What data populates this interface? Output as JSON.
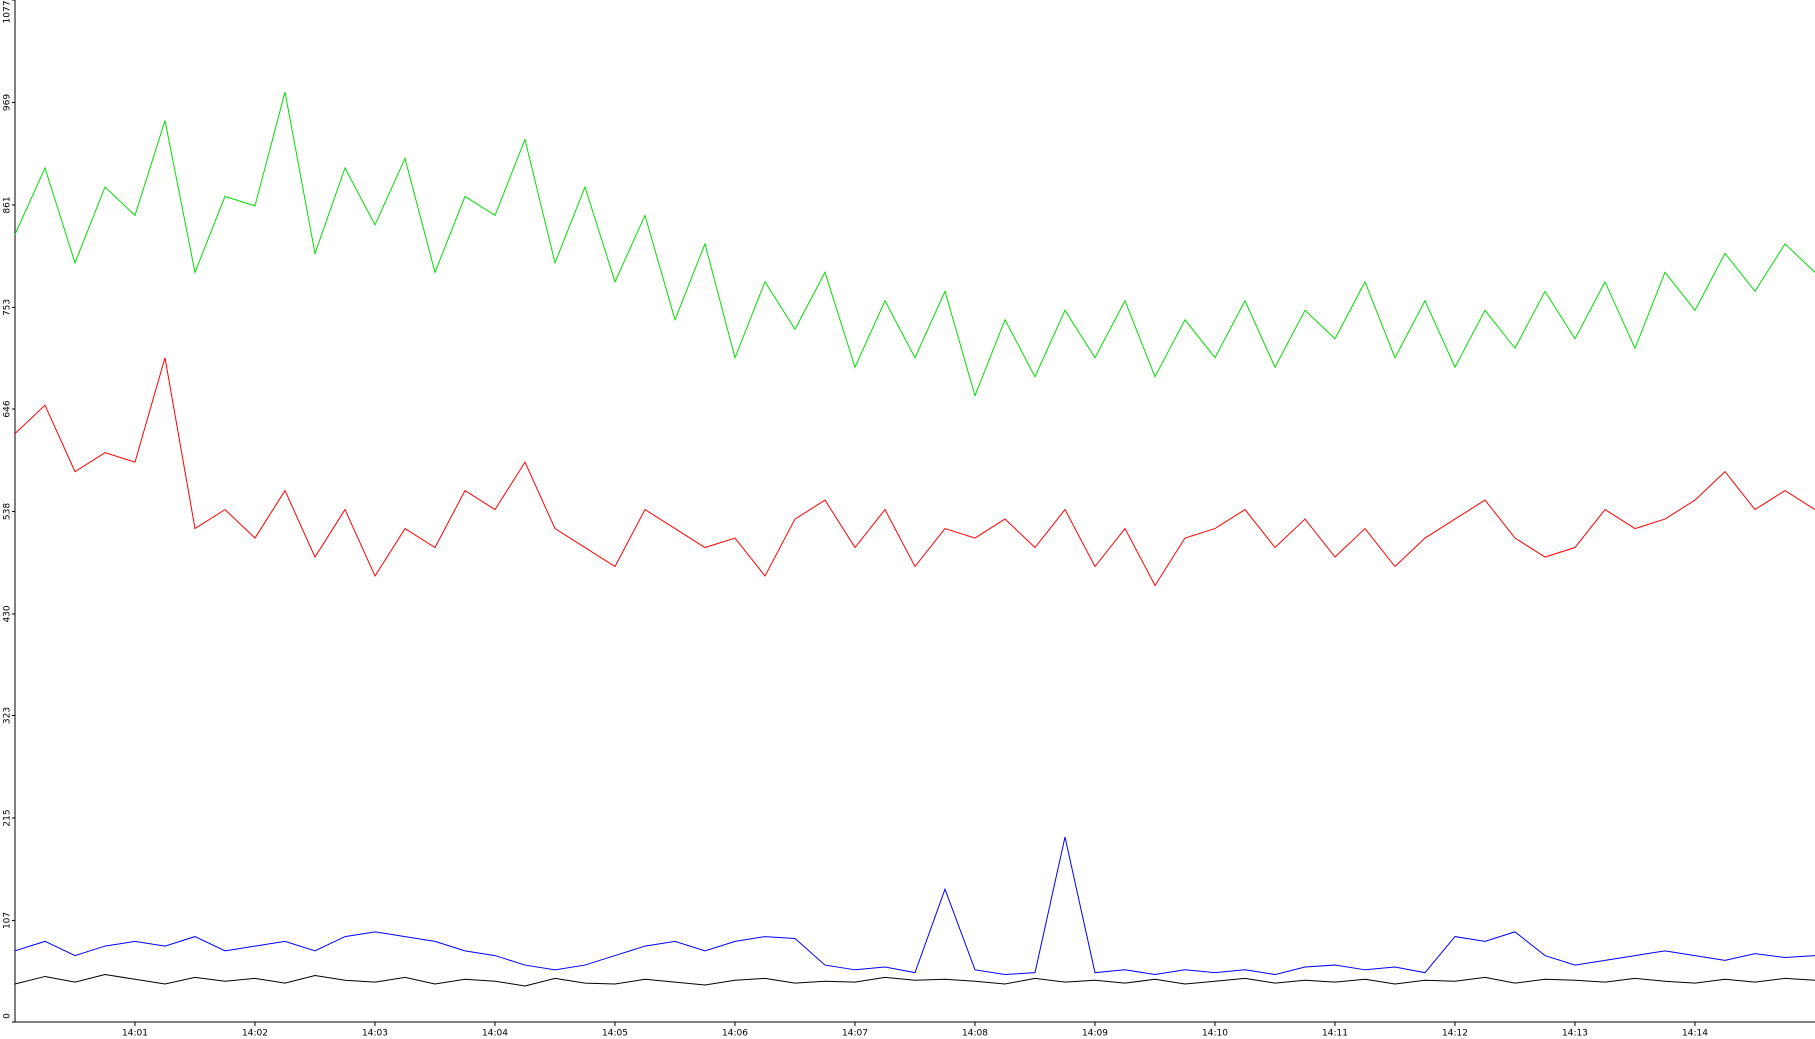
{
  "chart_data": {
    "type": "line",
    "x": [
      0,
      0.25,
      0.5,
      0.75,
      1,
      1.25,
      1.5,
      1.75,
      2,
      2.25,
      2.5,
      2.75,
      3,
      3.25,
      3.5,
      3.75,
      4,
      4.25,
      4.5,
      4.75,
      5,
      5.25,
      5.5,
      5.75,
      6,
      6.25,
      6.5,
      6.75,
      7,
      7.25,
      7.5,
      7.75,
      8,
      8.25,
      8.5,
      8.75,
      9,
      9.25,
      9.5,
      9.75,
      10,
      10.25,
      10.5,
      10.75,
      11,
      11.25,
      11.5,
      11.75,
      12,
      12.25,
      12.5,
      12.75,
      13,
      13.25,
      13.5,
      13.75,
      14,
      14.25,
      14.5,
      14.75,
      15
    ],
    "series": [
      {
        "color": "#00e000",
        "values": [
          830,
          900,
          800,
          880,
          850,
          950,
          790,
          870,
          860,
          980,
          810,
          900,
          840,
          910,
          790,
          870,
          850,
          930,
          800,
          880,
          780,
          850,
          740,
          820,
          700,
          780,
          730,
          790,
          690,
          760,
          700,
          770,
          660,
          740,
          680,
          750,
          700,
          760,
          680,
          740,
          700,
          760,
          690,
          750,
          720,
          780,
          700,
          760,
          690,
          750,
          710,
          770,
          720,
          780,
          710,
          790,
          750,
          810,
          770,
          820,
          790
        ]
      },
      {
        "color": "#ff0000",
        "values": [
          620,
          650,
          580,
          600,
          590,
          700,
          520,
          540,
          510,
          560,
          490,
          540,
          470,
          520,
          500,
          560,
          540,
          590,
          520,
          500,
          480,
          540,
          520,
          500,
          510,
          470,
          530,
          550,
          500,
          540,
          480,
          520,
          510,
          530,
          500,
          540,
          480,
          520,
          460,
          510,
          520,
          540,
          500,
          530,
          490,
          520,
          480,
          510,
          530,
          550,
          510,
          490,
          500,
          540,
          520,
          530,
          550,
          580,
          540,
          560,
          540
        ]
      },
      {
        "color": "#0000ff",
        "values": [
          75,
          85,
          70,
          80,
          85,
          80,
          90,
          75,
          80,
          85,
          75,
          90,
          95,
          90,
          85,
          75,
          70,
          60,
          55,
          60,
          70,
          80,
          85,
          75,
          85,
          90,
          88,
          60,
          55,
          58,
          52,
          140,
          55,
          50,
          52,
          195,
          52,
          55,
          50,
          55,
          52,
          55,
          50,
          58,
          60,
          55,
          58,
          52,
          90,
          85,
          95,
          70,
          60,
          65,
          70,
          75,
          70,
          65,
          72,
          68,
          70
        ]
      },
      {
        "color": "#000000",
        "values": [
          40,
          48,
          42,
          50,
          45,
          40,
          47,
          43,
          46,
          41,
          49,
          44,
          42,
          47,
          40,
          45,
          43,
          38,
          46,
          41,
          40,
          45,
          42,
          39,
          44,
          46,
          41,
          43,
          42,
          47,
          44,
          45,
          43,
          40,
          46,
          42,
          44,
          41,
          45,
          40,
          43,
          46,
          41,
          44,
          42,
          45,
          40,
          44,
          43,
          47,
          41,
          45,
          44,
          42,
          46,
          43,
          41,
          45,
          42,
          46,
          44
        ]
      }
    ],
    "xlim": [
      0,
      15
    ],
    "xticks": [
      {
        "value": 1,
        "label": "14:01"
      },
      {
        "value": 2,
        "label": "14:02"
      },
      {
        "value": 3,
        "label": "14:03"
      },
      {
        "value": 4,
        "label": "14:04"
      },
      {
        "value": 5,
        "label": "14:05"
      },
      {
        "value": 6,
        "label": "14:06"
      },
      {
        "value": 7,
        "label": "14:07"
      },
      {
        "value": 8,
        "label": "14:08"
      },
      {
        "value": 9,
        "label": "14:09"
      },
      {
        "value": 10,
        "label": "14:10"
      },
      {
        "value": 11,
        "label": "14:11"
      },
      {
        "value": 12,
        "label": "14:12"
      },
      {
        "value": 13,
        "label": "14:13"
      },
      {
        "value": 14,
        "label": "14:14"
      }
    ],
    "ylim": [
      0,
      1077
    ],
    "yticks": [
      0,
      107,
      215,
      323,
      430,
      538,
      646,
      753,
      861,
      969,
      1077
    ]
  }
}
